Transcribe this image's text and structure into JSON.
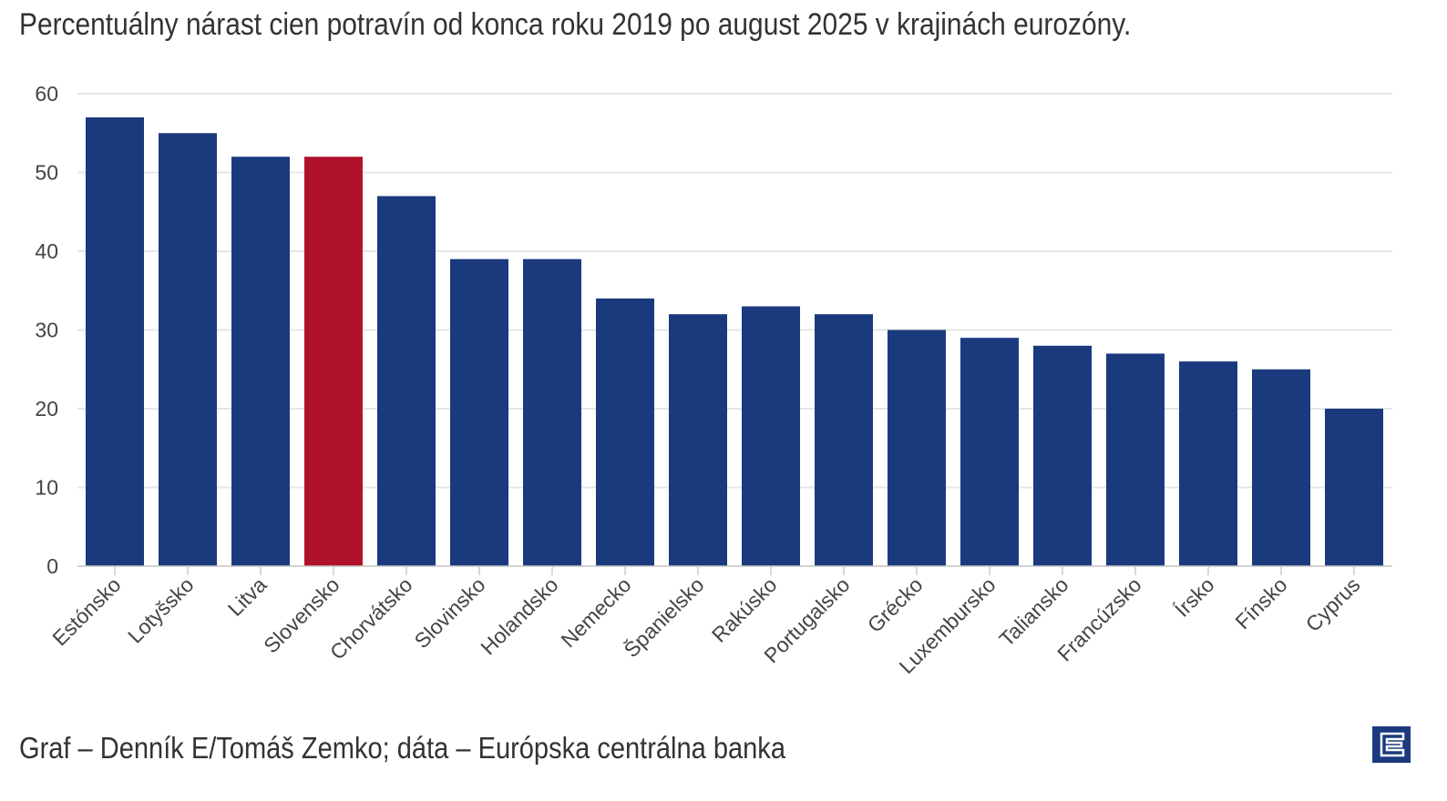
{
  "title": "Percentuálny nárast cien potravín od konca roku 2019 po august 2025 v krajinách eurozóny.",
  "source": "Graf – Denník E/Tomáš Zemko; dáta – Európska centrálna banka",
  "logo_text": "E",
  "colors": {
    "bar": "#1b3a7e",
    "highlight": "#b1122b",
    "grid": "#e6e6e6",
    "text": "#333333"
  },
  "chart_data": {
    "type": "bar",
    "title": "Percentuálny nárast cien potravín od konca roku 2019 po august 2025 v krajinách eurozóny.",
    "xlabel": "",
    "ylabel": "",
    "ylim": [
      0,
      60
    ],
    "yticks": [
      0,
      10,
      20,
      30,
      40,
      50,
      60
    ],
    "grid": true,
    "legend": "none",
    "categories": [
      "Estónsko",
      "Lotyšsko",
      "Litva",
      "Slovensko",
      "Chorvátsko",
      "Slovinsko",
      "Holandsko",
      "Nemecko",
      "Španielsko",
      "Rakúsko",
      "Portugalsko",
      "Grécko",
      "Luxembursko",
      "Taliansko",
      "Francúzsko",
      "Írsko",
      "Fínsko",
      "Cyprus"
    ],
    "values": [
      57,
      55,
      52,
      52,
      47,
      39,
      39,
      34,
      32,
      33,
      32,
      30,
      29,
      28,
      27,
      26,
      25,
      20
    ],
    "highlight": "Slovensko"
  }
}
